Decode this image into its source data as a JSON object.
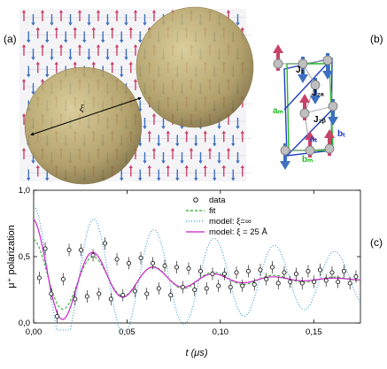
{
  "panels": {
    "a": "(a)",
    "b": "(b)",
    "c": "(c)"
  },
  "panel_a": {
    "xi_label": "ξ"
  },
  "panel_b": {
    "labels": {
      "J1": "J₁",
      "J2a": "J₂ₐ",
      "J2b": "J₂ᵦ",
      "am": "aₘ",
      "at": "aₜ",
      "bt": "bₜ",
      "bm": "bₘ"
    },
    "colors": {
      "red_spin": "#c8436a",
      "blue_spin": "#3f6fc0",
      "green_cell": "#22bb22",
      "blue_cell": "#1f3fbf"
    }
  },
  "panel_c": {
    "yaxis_label": "μ⁺ polarization",
    "xaxis_label": "t (μs)",
    "legend": [
      {
        "key": "data",
        "label": "data"
      },
      {
        "key": "fit",
        "label": "fit"
      },
      {
        "key": "inf",
        "label": "model: ξ=∞"
      },
      {
        "key": "xi25",
        "label": "model: ξ = 25 Å"
      }
    ],
    "x_ticks": [
      "0,00",
      "0,05",
      "0,10",
      "0,15"
    ],
    "y_ticks": [
      "0,0",
      "0,5",
      "1,0"
    ]
  },
  "chart_data": {
    "type": "line",
    "xlabel": "t (μs)",
    "ylabel": "μ⁺ polarization",
    "xlim": [
      0,
      0.175
    ],
    "ylim": [
      0,
      1.0
    ],
    "grid": false,
    "legend_position": "top-right",
    "series": [
      {
        "name": "data",
        "style": "markers",
        "color": "#000000",
        "x": [
          0.003,
          0.0062,
          0.0094,
          0.0126,
          0.0158,
          0.019,
          0.0222,
          0.0254,
          0.0286,
          0.0318,
          0.035,
          0.0382,
          0.0414,
          0.0446,
          0.0478,
          0.051,
          0.0542,
          0.0574,
          0.0606,
          0.0638,
          0.067,
          0.0702,
          0.0734,
          0.0766,
          0.0798,
          0.083,
          0.0862,
          0.0894,
          0.0926,
          0.0958,
          0.099,
          0.1022,
          0.1054,
          0.1086,
          0.1118,
          0.115,
          0.1182,
          0.1214,
          0.1246,
          0.1278,
          0.131,
          0.1342,
          0.1374,
          0.1406,
          0.1438,
          0.147,
          0.1502,
          0.1534,
          0.1566,
          0.1598,
          0.163,
          0.1662,
          0.1694,
          0.1726
        ],
        "y": [
          0.34,
          0.56,
          0.22,
          0.05,
          0.33,
          0.55,
          0.18,
          0.55,
          0.2,
          0.51,
          0.22,
          0.6,
          0.18,
          0.48,
          0.21,
          0.45,
          0.24,
          0.49,
          0.22,
          0.45,
          0.26,
          0.43,
          0.21,
          0.42,
          0.27,
          0.41,
          0.25,
          0.39,
          0.26,
          0.37,
          0.28,
          0.37,
          0.27,
          0.38,
          0.28,
          0.39,
          0.29,
          0.4,
          0.33,
          0.42,
          0.3,
          0.38,
          0.31,
          0.37,
          0.3,
          0.39,
          0.31,
          0.4,
          0.32,
          0.38,
          0.31,
          0.39,
          0.3,
          0.35
        ]
      },
      {
        "name": "fit",
        "style": "dashed",
        "color": "#22aa22",
        "amp": 0.3,
        "damp": 18,
        "freq": 31,
        "base": 0.33
      },
      {
        "name": "model: ξ=∞",
        "style": "dotted",
        "color": "#3399cc",
        "amp": 0.55,
        "damp": 6,
        "freq": 31,
        "base": 0.33
      },
      {
        "name": "model: ξ = 25 Å",
        "style": "solid",
        "color": "#cc22cc",
        "amp": 0.45,
        "damp": 25,
        "freq": 31,
        "base": 0.33
      }
    ]
  }
}
